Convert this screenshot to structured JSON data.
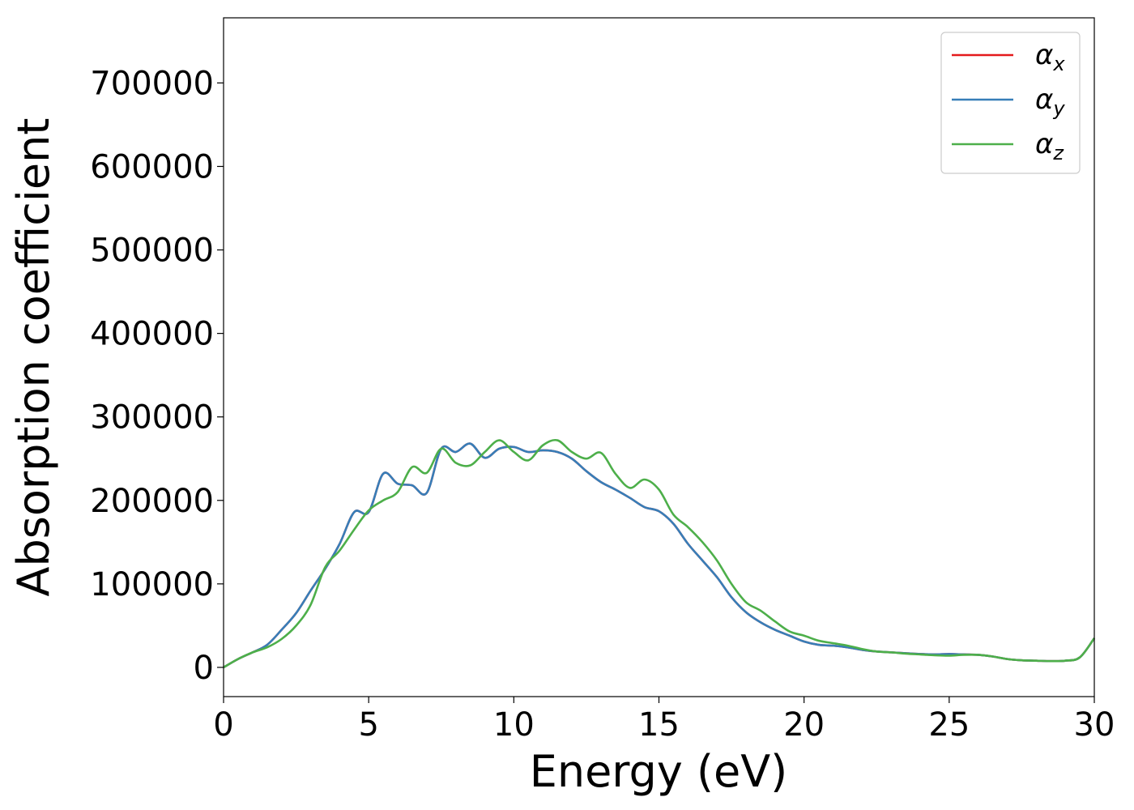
{
  "chart_data": {
    "type": "line",
    "xlabel": "Energy (eV)",
    "ylabel": "Absorption coefficient",
    "xlim": [
      0,
      30
    ],
    "ylim": [
      -35000,
      778000
    ],
    "xticks": [
      0,
      5,
      10,
      15,
      20,
      25,
      30
    ],
    "yticks": [
      0,
      100000,
      200000,
      300000,
      400000,
      500000,
      600000,
      700000
    ],
    "grid": false,
    "legend_position": "top-right",
    "x": [
      0.0,
      0.5,
      1.0,
      1.5,
      2.0,
      2.5,
      3.0,
      3.5,
      4.0,
      4.5,
      5.0,
      5.5,
      6.0,
      6.5,
      7.0,
      7.5,
      8.0,
      8.5,
      9.0,
      9.5,
      10.0,
      10.5,
      11.0,
      11.5,
      12.0,
      12.5,
      13.0,
      13.5,
      14.0,
      14.5,
      15.0,
      15.5,
      16.0,
      16.5,
      17.0,
      17.5,
      18.0,
      18.5,
      19.0,
      19.5,
      20.0,
      20.5,
      21.0,
      21.5,
      22.0,
      22.5,
      23.0,
      23.5,
      24.0,
      24.5,
      25.0,
      25.5,
      26.0,
      26.5,
      27.0,
      27.5,
      28.0,
      28.5,
      29.0,
      29.5,
      30.0
    ],
    "series": [
      {
        "name": "α",
        "subscript": "x",
        "color": "#e41a1c",
        "values": [
          0,
          10000,
          18000,
          27000,
          45000,
          65000,
          92000,
          118000,
          148000,
          186000,
          186000,
          232000,
          220000,
          218000,
          209000,
          262000,
          258000,
          268000,
          251000,
          262000,
          264000,
          258000,
          260000,
          258000,
          250000,
          235000,
          222000,
          213000,
          203000,
          192000,
          187000,
          172000,
          148000,
          128000,
          108000,
          84000,
          66000,
          54000,
          45000,
          38000,
          31000,
          27000,
          26000,
          24000,
          21000,
          19000,
          18000,
          17000,
          16000,
          15500,
          16000,
          15500,
          15000,
          13000,
          10000,
          8500,
          8000,
          7500,
          8000,
          12000,
          35000
        ]
      },
      {
        "name": "α",
        "subscript": "y",
        "color": "#377eb8",
        "values": [
          0,
          10000,
          18000,
          27000,
          45000,
          65000,
          92000,
          118000,
          148000,
          186000,
          186000,
          232000,
          220000,
          218000,
          209000,
          262000,
          258000,
          268000,
          251000,
          262000,
          264000,
          258000,
          260000,
          258000,
          250000,
          235000,
          222000,
          213000,
          203000,
          192000,
          187000,
          172000,
          148000,
          128000,
          108000,
          84000,
          66000,
          54000,
          45000,
          38000,
          31000,
          27000,
          26000,
          24000,
          21000,
          19000,
          18000,
          17000,
          16000,
          15500,
          16000,
          15500,
          15000,
          13000,
          10000,
          8500,
          8000,
          7500,
          8000,
          12000,
          35000
        ]
      },
      {
        "name": "α",
        "subscript": "z",
        "color": "#4daf4a",
        "values": [
          0,
          10000,
          18000,
          24000,
          34000,
          50000,
          75000,
          120000,
          140000,
          165000,
          188000,
          200000,
          210000,
          240000,
          233000,
          262000,
          245000,
          242000,
          258000,
          272000,
          258000,
          248000,
          266000,
          272000,
          258000,
          250000,
          257000,
          232000,
          215000,
          225000,
          213000,
          183000,
          168000,
          150000,
          128000,
          100000,
          78000,
          68000,
          55000,
          43000,
          38000,
          32000,
          29000,
          26000,
          22000,
          19000,
          18000,
          16500,
          15500,
          14500,
          14000,
          15000,
          15000,
          13000,
          10000,
          8500,
          8000,
          7500,
          8000,
          12000,
          35000
        ]
      }
    ]
  }
}
